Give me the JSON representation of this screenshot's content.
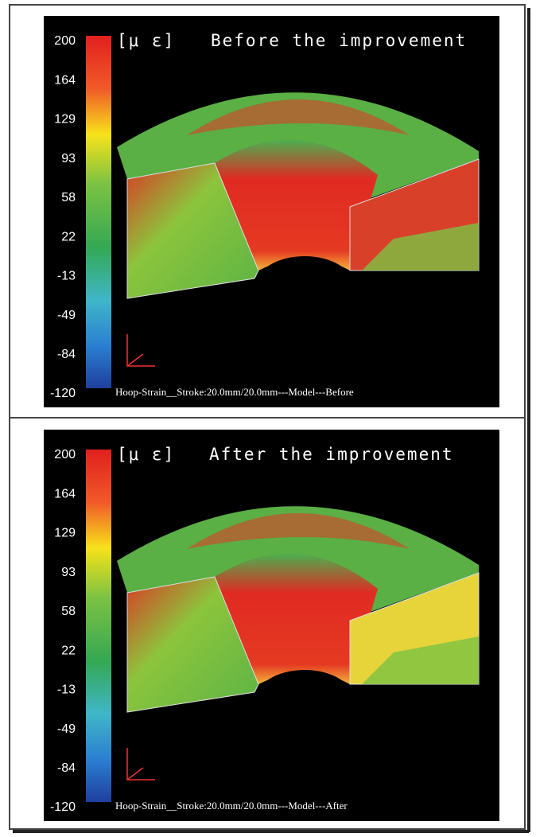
{
  "panels": [
    {
      "unit": "[μ ε]",
      "title": "Before the improvement",
      "scale": [
        200,
        164,
        129,
        93,
        58,
        22,
        -13,
        -49,
        -84,
        -120
      ],
      "caption": "Hoop-Strain__Stroke:20.0mm/20.0mm---Model---Before"
    },
    {
      "unit": "[μ ε]",
      "title": "After the improvement",
      "scale": [
        200,
        164,
        129,
        93,
        58,
        22,
        -13,
        -49,
        -84,
        -120
      ],
      "caption": "Hoop-Strain__Stroke:20.0mm/20.0mm---Model---After"
    }
  ]
}
